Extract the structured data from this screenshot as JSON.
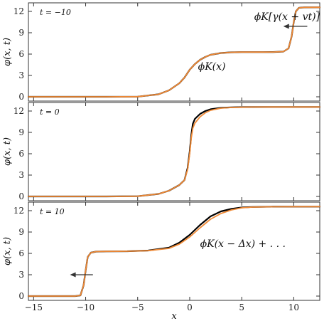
{
  "chart_data": [
    {
      "type": "line",
      "time_label": "t = −10",
      "ylabel": "φ(x, t)",
      "xlim": [
        -15.5,
        12.5
      ],
      "ylim": [
        -0.6,
        13.2
      ],
      "yticks": [
        0,
        3,
        6,
        9,
        12
      ],
      "annotations": [
        {
          "text": "ϕK[γ(x + vt)]",
          "x": 6.2,
          "y": 10.8
        },
        {
          "text": "ϕK(x)",
          "x": 0.8,
          "y": 3.8
        }
      ],
      "arrow": {
        "from": [
          11.3,
          9.9
        ],
        "to": [
          9.0,
          9.9
        ],
        "direction": "left"
      },
      "series": [
        {
          "color": "#000000",
          "x": [
            -15.5,
            -8,
            -5,
            -3,
            -2,
            -1,
            -0.5,
            0,
            0.5,
            1,
            1.5,
            2,
            3,
            4,
            5,
            6,
            7,
            8,
            9,
            9.5,
            9.8,
            10,
            10.2,
            10.5,
            11,
            12.5
          ],
          "y": [
            0,
            0,
            0.02,
            0.35,
            0.9,
            1.9,
            2.7,
            3.8,
            4.6,
            5.2,
            5.6,
            5.9,
            6.15,
            6.25,
            6.28,
            6.28,
            6.28,
            6.29,
            6.35,
            6.8,
            8.5,
            10.5,
            12.0,
            12.5,
            12.56,
            12.57
          ]
        },
        {
          "color": "#f08a36",
          "x": [
            -15.5,
            -8,
            -5,
            -3,
            -2,
            -1,
            -0.5,
            0,
            0.5,
            1,
            1.5,
            2,
            3,
            4,
            5,
            6,
            7,
            8,
            9,
            9.5,
            9.8,
            10,
            10.2,
            10.5,
            11,
            12.5
          ],
          "y": [
            0,
            0,
            0.02,
            0.35,
            0.9,
            1.9,
            2.7,
            3.8,
            4.6,
            5.2,
            5.6,
            5.9,
            6.15,
            6.25,
            6.28,
            6.28,
            6.28,
            6.29,
            6.35,
            6.8,
            8.5,
            10.5,
            12.0,
            12.5,
            12.56,
            12.57
          ]
        }
      ]
    },
    {
      "type": "line",
      "time_label": "t = 0",
      "ylabel": "φ(x, t)",
      "xlim": [
        -15.5,
        12.5
      ],
      "ylim": [
        -0.6,
        13.2
      ],
      "yticks": [
        0,
        3,
        6,
        9,
        12
      ],
      "annotations": [],
      "series": [
        {
          "color": "#000000",
          "x": [
            -15.5,
            -8,
            -5,
            -3,
            -2,
            -1,
            -0.5,
            -0.2,
            0,
            0.15,
            0.3,
            0.5,
            1,
            1.5,
            2,
            3,
            4,
            5,
            6,
            8,
            12.5
          ],
          "y": [
            0,
            0,
            0.03,
            0.35,
            0.8,
            1.6,
            2.3,
            4.0,
            6.3,
            8.6,
            10.2,
            10.9,
            11.6,
            12.0,
            12.25,
            12.45,
            12.52,
            12.55,
            12.56,
            12.57,
            12.57
          ]
        },
        {
          "color": "#f08a36",
          "x": [
            -15.5,
            -8,
            -5,
            -3,
            -2,
            -1,
            -0.5,
            -0.2,
            0,
            0.15,
            0.3,
            0.5,
            1,
            1.5,
            2,
            3,
            4,
            5,
            6,
            8,
            12.5
          ],
          "y": [
            0,
            0,
            0.03,
            0.35,
            0.8,
            1.6,
            2.3,
            3.8,
            6.0,
            8.2,
            9.6,
            10.3,
            11.2,
            11.75,
            12.1,
            12.4,
            12.5,
            12.54,
            12.56,
            12.57,
            12.57
          ]
        }
      ]
    },
    {
      "type": "line",
      "time_label": "t = 10",
      "ylabel": "φ(x, t)",
      "xlabel": "x",
      "xlim": [
        -15.5,
        12.5
      ],
      "ylim": [
        -0.6,
        13.2
      ],
      "yticks": [
        0,
        3,
        6,
        9,
        12
      ],
      "xticks": [
        -15,
        -10,
        -5,
        0,
        5,
        10
      ],
      "annotations": [
        {
          "text": "ϕK(x − Δx) + . . .",
          "x": 1.0,
          "y": 6.9
        }
      ],
      "arrow": {
        "from": [
          -9.3,
          3.0
        ],
        "to": [
          -11.5,
          3.0
        ],
        "direction": "left"
      },
      "series": [
        {
          "color": "#000000",
          "x": [
            -15.5,
            -11,
            -10.5,
            -10.2,
            -10,
            -9.8,
            -9.5,
            -9,
            -8,
            -6,
            -4,
            -2,
            -1,
            0,
            1,
            2,
            3,
            4,
            5,
            6,
            8,
            12.5
          ],
          "y": [
            0,
            0,
            0.1,
            1.5,
            3.6,
            5.5,
            6.1,
            6.25,
            6.28,
            6.3,
            6.4,
            6.8,
            7.5,
            8.6,
            10.0,
            11.2,
            11.9,
            12.25,
            12.45,
            12.52,
            12.56,
            12.57
          ]
        },
        {
          "color": "#f08a36",
          "x": [
            -15.5,
            -11,
            -10.5,
            -10.2,
            -10,
            -9.8,
            -9.5,
            -9,
            -8,
            -6,
            -4,
            -2,
            -1,
            0,
            1,
            2,
            3,
            4,
            5,
            6,
            8,
            12.5
          ],
          "y": [
            0,
            0,
            0.1,
            1.5,
            3.6,
            5.5,
            6.1,
            6.25,
            6.28,
            6.3,
            6.38,
            6.7,
            7.3,
            8.3,
            9.6,
            10.8,
            11.6,
            12.1,
            12.4,
            12.5,
            12.55,
            12.57
          ]
        }
      ]
    }
  ]
}
